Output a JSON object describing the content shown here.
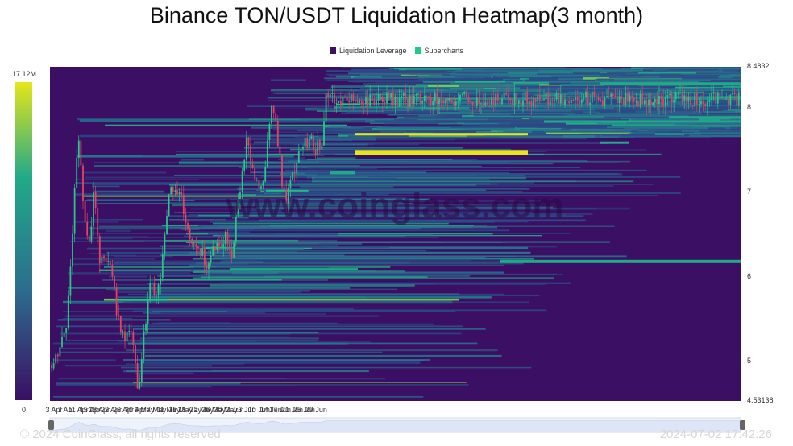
{
  "title": "Binance TON/USDT Liquidation Heatmap(3 month)",
  "legend": [
    {
      "label": "Liquidation Leverage",
      "color": "#3b0f63"
    },
    {
      "label": "Supercharts",
      "color": "#1ec98a"
    }
  ],
  "colorbar": {
    "max_label": "17.12M",
    "min_label": "0"
  },
  "watermark": "www.coinglass.com",
  "footer": {
    "copyright": "© 2024 CoinGlass, all rights reserved",
    "timestamp": "2024-07-02 17:42:26"
  },
  "chart_data": {
    "type": "heatmap",
    "title": "Binance TON/USDT Liquidation Heatmap(3 month)",
    "y_ticks": [
      "8.4832",
      "8",
      "7",
      "6",
      "5",
      "4.53138"
    ],
    "ylim": [
      4.53138,
      8.4832
    ],
    "x_ticks": [
      "3 Apr",
      "7 Apr",
      "11 Apr",
      "15 Apr",
      "18 Apr",
      "22 Apr",
      "26 Apr",
      "30 Apr",
      "3 May",
      "7 May",
      "11 May",
      "15 May",
      "18 May",
      "22 May",
      "26 May",
      "30 May",
      "2 Jun",
      "6 Jun",
      "10 Jun",
      "14 Jun",
      "17 Jun",
      "21 Jun",
      "25 Jun",
      "29 Jun"
    ],
    "colorscale": {
      "min": 0,
      "max": 17120000,
      "colors": [
        "#3b0f63",
        "#2c6e8e",
        "#21a98a",
        "#e6e619"
      ]
    },
    "price_close": [
      {
        "date": "3 Apr",
        "price": 4.96
      },
      {
        "date": "7 Apr",
        "price": 5.4
      },
      {
        "date": "9 Apr",
        "price": 6.45
      },
      {
        "date": "11 Apr",
        "price": 7.65
      },
      {
        "date": "13 Apr",
        "price": 6.8
      },
      {
        "date": "15 Apr",
        "price": 6.3
      },
      {
        "date": "16 Apr",
        "price": 7.1
      },
      {
        "date": "18 Apr",
        "price": 6.2
      },
      {
        "date": "22 Apr",
        "price": 6.15
      },
      {
        "date": "24 Apr",
        "price": 5.55
      },
      {
        "date": "26 Apr",
        "price": 5.25
      },
      {
        "date": "28 Apr",
        "price": 5.4
      },
      {
        "date": "30 Apr",
        "price": 5.0
      },
      {
        "date": "1 May",
        "price": 4.65
      },
      {
        "date": "3 May",
        "price": 5.35
      },
      {
        "date": "5 May",
        "price": 5.9
      },
      {
        "date": "7 May",
        "price": 5.7
      },
      {
        "date": "9 May",
        "price": 6.25
      },
      {
        "date": "11 May",
        "price": 6.9
      },
      {
        "date": "13 May",
        "price": 7.1
      },
      {
        "date": "15 May",
        "price": 7.0
      },
      {
        "date": "17 May",
        "price": 6.6
      },
      {
        "date": "18 May",
        "price": 6.45
      },
      {
        "date": "20 May",
        "price": 6.4
      },
      {
        "date": "22 May",
        "price": 6.3
      },
      {
        "date": "24 May",
        "price": 6.15
      },
      {
        "date": "26 May",
        "price": 6.4
      },
      {
        "date": "28 May",
        "price": 6.35
      },
      {
        "date": "30 May",
        "price": 6.5
      },
      {
        "date": "1 Jun",
        "price": 6.3
      },
      {
        "date": "2 Jun",
        "price": 6.55
      },
      {
        "date": "4 Jun",
        "price": 7.1
      },
      {
        "date": "6 Jun",
        "price": 7.6
      },
      {
        "date": "8 Jun",
        "price": 7.3
      },
      {
        "date": "10 Jun",
        "price": 7.0
      },
      {
        "date": "12 Jun",
        "price": 7.3
      },
      {
        "date": "14 Jun",
        "price": 8.1
      },
      {
        "date": "15 Jun",
        "price": 7.85
      },
      {
        "date": "16 Jun",
        "price": 7.7
      },
      {
        "date": "17 Jun",
        "price": 7.4
      },
      {
        "date": "18 Jun",
        "price": 7.0
      },
      {
        "date": "19 Jun",
        "price": 6.9
      },
      {
        "date": "21 Jun",
        "price": 7.15
      },
      {
        "date": "23 Jun",
        "price": 7.45
      },
      {
        "date": "25 Jun",
        "price": 7.55
      },
      {
        "date": "27 Jun",
        "price": 7.6
      },
      {
        "date": "29 Jun",
        "price": 7.5
      },
      {
        "date": "1 Jul",
        "price": 7.65
      },
      {
        "date": "2 Jul",
        "price": 8.1
      }
    ]
  }
}
